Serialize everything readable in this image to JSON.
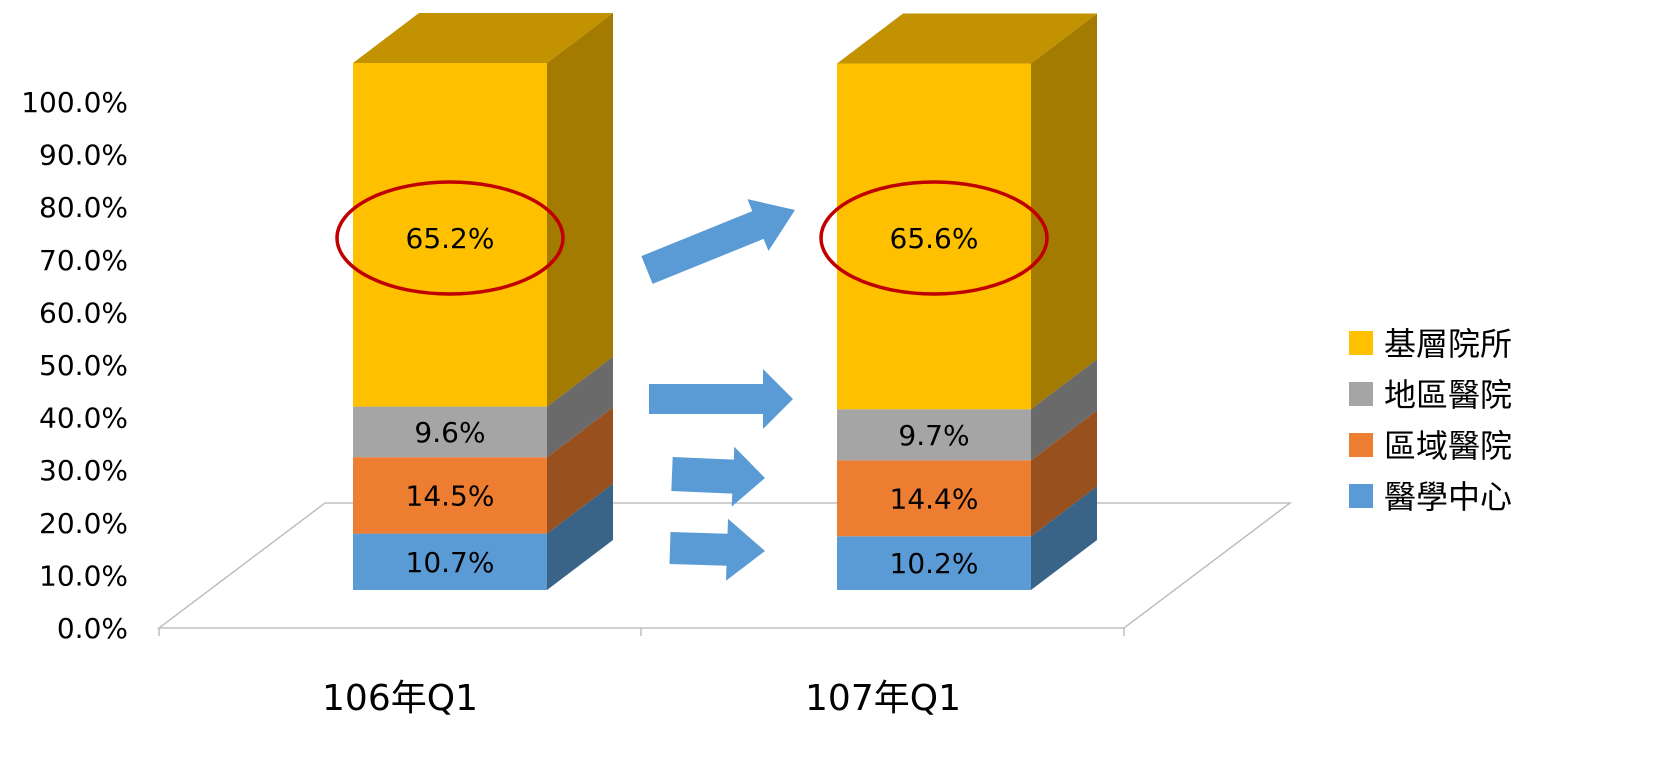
{
  "chart_data": {
    "type": "bar",
    "stacked": true,
    "three_d": true,
    "categories": [
      "106年Q1",
      "107年Q1"
    ],
    "series": [
      {
        "name": "醫學中心",
        "values": [
          10.7,
          10.2
        ],
        "labels": [
          "10.7%",
          "10.2%"
        ],
        "color": "#5B9BD5"
      },
      {
        "name": "區域醫院",
        "values": [
          14.5,
          14.4
        ],
        "labels": [
          "14.5%",
          "14.4%"
        ],
        "color": "#ED7D31"
      },
      {
        "name": "地區醫院",
        "values": [
          9.6,
          9.7
        ],
        "labels": [
          "9.6%",
          "9.7%"
        ],
        "color": "#A5A5A5"
      },
      {
        "name": "基層院所",
        "values": [
          65.2,
          65.6
        ],
        "labels": [
          "65.2%",
          "65.6%"
        ],
        "color": "#FFC000"
      }
    ],
    "y_ticks": [
      "0.0%",
      "10.0%",
      "20.0%",
      "30.0%",
      "40.0%",
      "50.0%",
      "60.0%",
      "70.0%",
      "80.0%",
      "90.0%",
      "100.0%"
    ],
    "ylim": [
      0,
      100
    ],
    "legend_position": "right",
    "legend_order": [
      "基層院所",
      "地區醫院",
      "區域醫院",
      "醫學中心"
    ],
    "highlight_series": "基層院所",
    "highlight_color": "#C00000",
    "arrow_color": "#5B9BD5",
    "grid": false
  }
}
